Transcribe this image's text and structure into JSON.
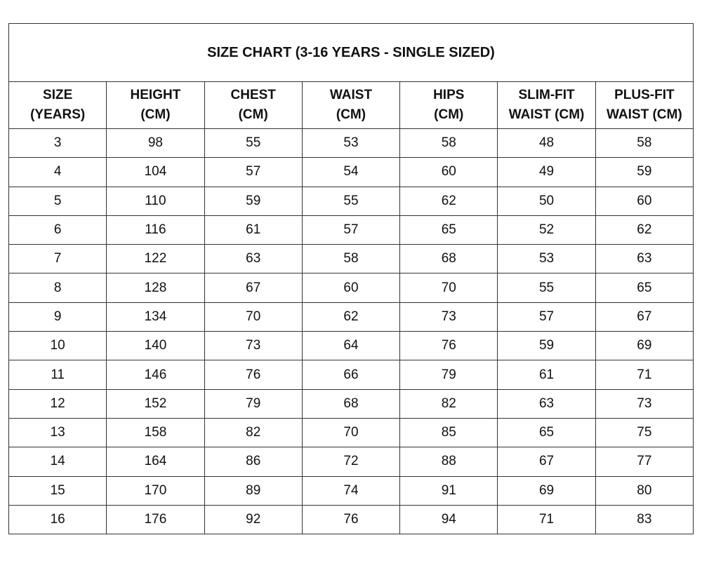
{
  "title": "SIZE CHART (3-16 YEARS - SINGLE SIZED)",
  "headers": [
    [
      "SIZE",
      "(YEARS)"
    ],
    [
      "HEIGHT",
      "(CM)"
    ],
    [
      "CHEST",
      "(CM)"
    ],
    [
      "WAIST",
      "(CM)"
    ],
    [
      "HIPS",
      "(CM)"
    ],
    [
      "SLIM-FIT",
      "WAIST (CM)"
    ],
    [
      "PLUS-FIT",
      "WAIST (CM)"
    ]
  ],
  "rows": [
    [
      "3",
      "98",
      "55",
      "53",
      "58",
      "48",
      "58"
    ],
    [
      "4",
      "104",
      "57",
      "54",
      "60",
      "49",
      "59"
    ],
    [
      "5",
      "110",
      "59",
      "55",
      "62",
      "50",
      "60"
    ],
    [
      "6",
      "116",
      "61",
      "57",
      "65",
      "52",
      "62"
    ],
    [
      "7",
      "122",
      "63",
      "58",
      "68",
      "53",
      "63"
    ],
    [
      "8",
      "128",
      "67",
      "60",
      "70",
      "55",
      "65"
    ],
    [
      "9",
      "134",
      "70",
      "62",
      "73",
      "57",
      "67"
    ],
    [
      "10",
      "140",
      "73",
      "64",
      "76",
      "59",
      "69"
    ],
    [
      "11",
      "146",
      "76",
      "66",
      "79",
      "61",
      "71"
    ],
    [
      "12",
      "152",
      "79",
      "68",
      "82",
      "63",
      "73"
    ],
    [
      "13",
      "158",
      "82",
      "70",
      "85",
      "65",
      "75"
    ],
    [
      "14",
      "164",
      "86",
      "72",
      "88",
      "67",
      "77"
    ],
    [
      "15",
      "170",
      "89",
      "74",
      "91",
      "69",
      "80"
    ],
    [
      "16",
      "176",
      "92",
      "76",
      "94",
      "71",
      "83"
    ]
  ]
}
